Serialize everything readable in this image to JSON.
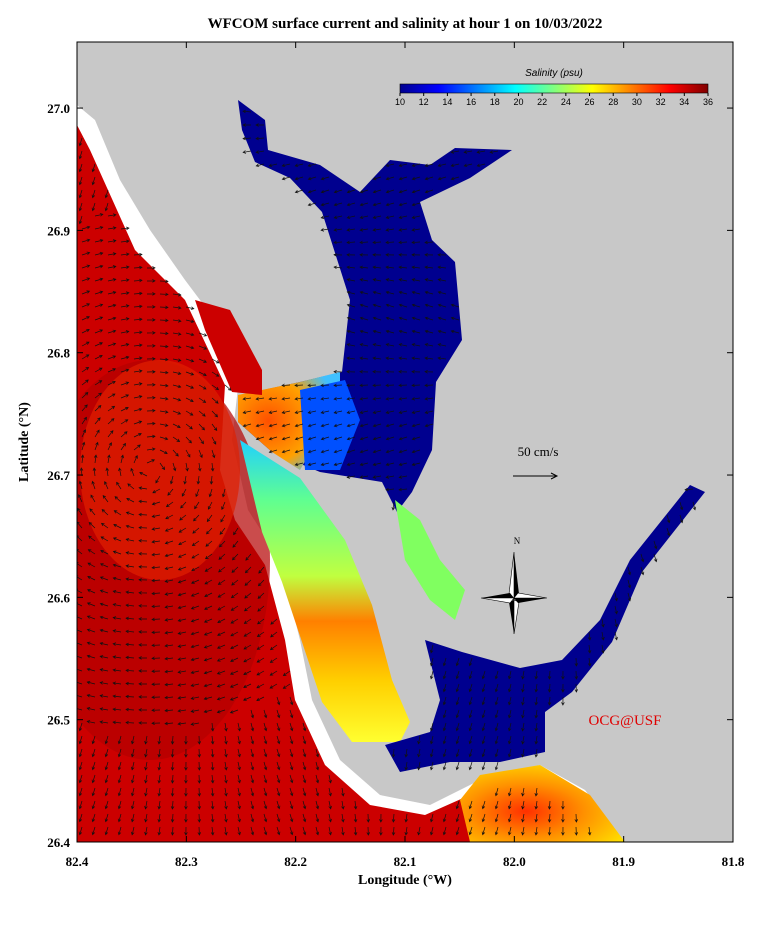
{
  "title": "WFCOM surface current and salinity at hour 1 on 10/03/2022",
  "map": {
    "x_axis": {
      "label": "Longitude (°W)",
      "lim": [
        82.4,
        81.8
      ],
      "ticks": [
        82.4,
        82.3,
        82.2,
        82.1,
        {
          "value": 82.0,
          "label": "82.0"
        },
        81.9,
        81.8
      ]
    },
    "y_axis": {
      "label": "Latitude (°N)",
      "lim": [
        26.4,
        27.054
      ],
      "ticks": [
        26.4,
        26.5,
        26.6,
        26.7,
        26.8,
        26.9,
        {
          "value": 27.0,
          "label": "27.0"
        }
      ]
    },
    "colorbar": {
      "title": "Salinity (psu)",
      "lim": [
        10,
        36
      ],
      "ticks": [
        10,
        12,
        14,
        16,
        18,
        20,
        22,
        24,
        26,
        28,
        30,
        32,
        34,
        36
      ],
      "colors": [
        "#00008f",
        "#0000ff",
        "#0080ff",
        "#00ffff",
        "#80ff80",
        "#ffff00",
        "#ff8000",
        "#ff0000",
        "#800000"
      ]
    },
    "scale_arrow": {
      "label": "50 cm/s"
    },
    "compass": {
      "label": "N"
    },
    "credit": "OCG@USF"
  }
}
